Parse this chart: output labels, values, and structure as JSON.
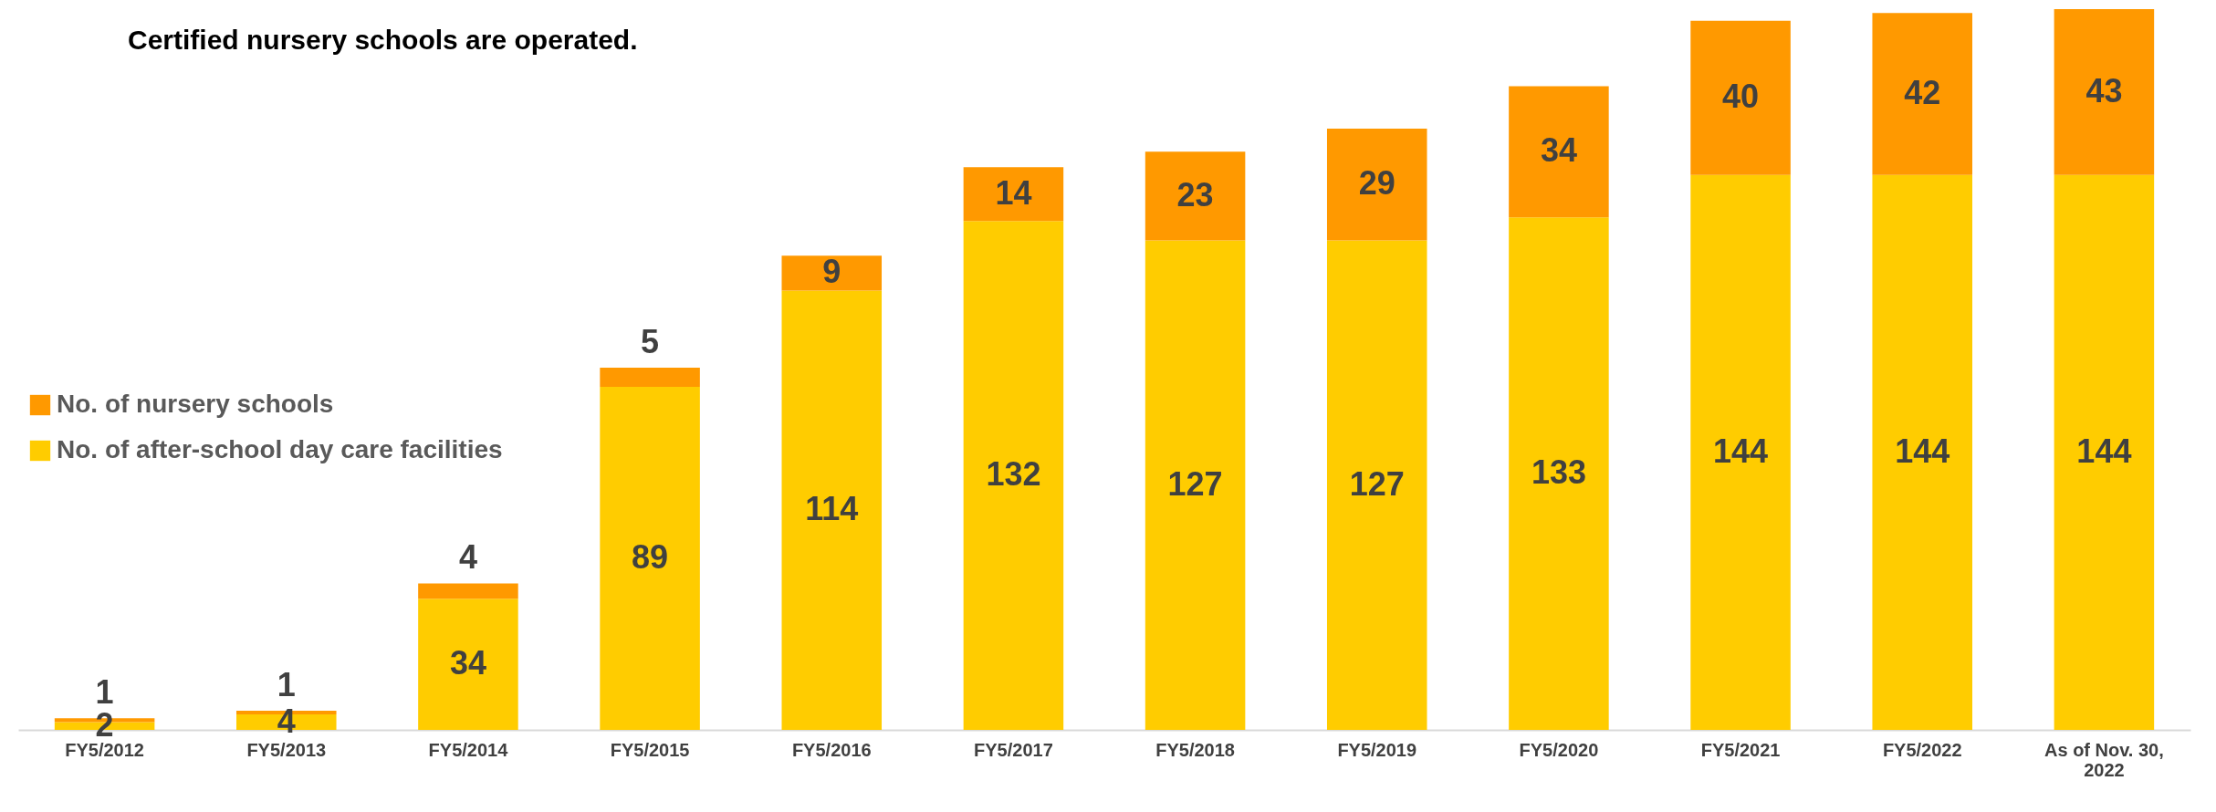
{
  "chart_data": {
    "type": "bar",
    "stacked": true,
    "data_labels": true,
    "legend": "left",
    "annotations": [
      "Certified nursery schools are operated."
    ],
    "categories": [
      "FY5/2012",
      "FY5/2013",
      "FY5/2014",
      "FY5/2015",
      "FY5/2016",
      "FY5/2017",
      "FY5/2018",
      "FY5/2019",
      "FY5/2020",
      "FY5/2021",
      "FY5/2022",
      "As of Nov. 30, 2022"
    ],
    "series": [
      {
        "name": "No. of after-school day care facilities",
        "color": "#ffcc00",
        "values": [
          2,
          4,
          34,
          89,
          114,
          132,
          127,
          127,
          133,
          144,
          144,
          144
        ]
      },
      {
        "name": "No. of nursery schools",
        "color": "#ff9900",
        "values": [
          1,
          1,
          4,
          5,
          9,
          14,
          23,
          29,
          34,
          40,
          42,
          43
        ]
      }
    ]
  }
}
